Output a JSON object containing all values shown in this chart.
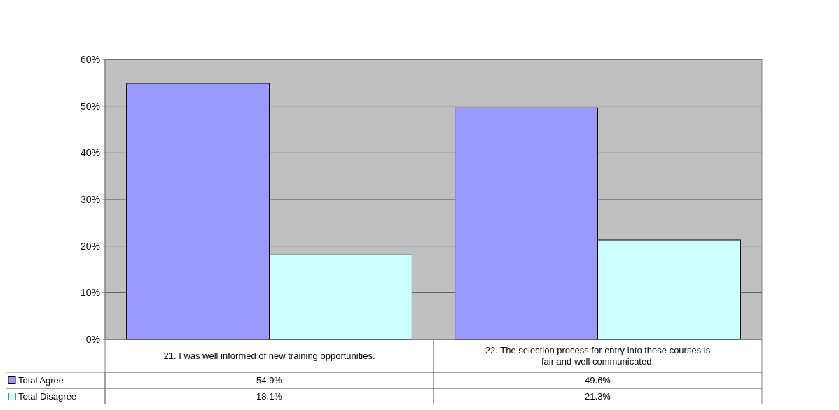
{
  "chart_data": {
    "type": "bar",
    "categories": [
      "21. I was well informed of new training opportunities.",
      "22. The selection process for entry into these courses is fair and well communicated."
    ],
    "series": [
      {
        "name": "Total Agree",
        "color": "#9999ff",
        "values": [
          54.9,
          49.6
        ],
        "value_labels": [
          "54.9%",
          "49.6%"
        ]
      },
      {
        "name": "Total Disagree",
        "color": "#ccffff",
        "values": [
          18.1,
          21.3
        ],
        "value_labels": [
          "18.1%",
          "21.3%"
        ]
      }
    ],
    "ylim": [
      0,
      60
    ],
    "yticks": [
      {
        "value": 0,
        "label": "0%"
      },
      {
        "value": 10,
        "label": "10%"
      },
      {
        "value": 20,
        "label": "20%"
      },
      {
        "value": 30,
        "label": "30%"
      },
      {
        "value": 40,
        "label": "40%"
      },
      {
        "value": 50,
        "label": "50%"
      },
      {
        "value": 60,
        "label": "60%"
      }
    ],
    "grid": "y",
    "legend": "bottom"
  }
}
